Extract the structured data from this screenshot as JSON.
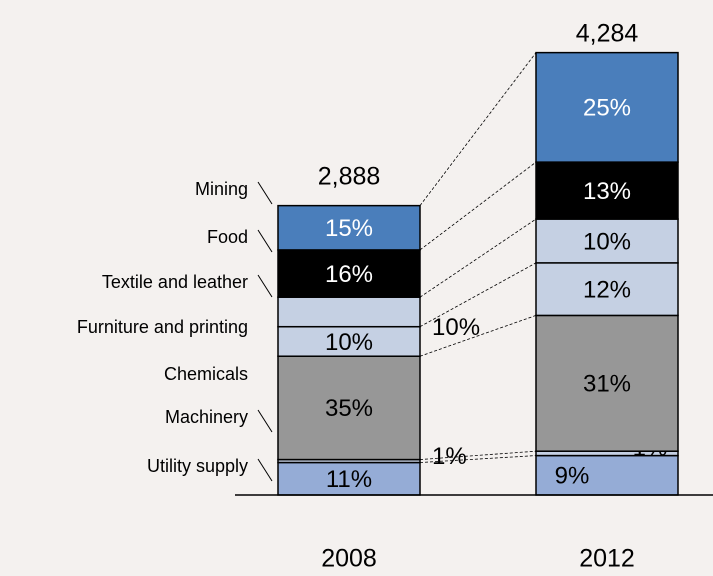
{
  "chart_data": {
    "type": "bar",
    "stacked": true,
    "categories": [
      "2008",
      "2012"
    ],
    "totals": {
      "values": [
        2888,
        4284
      ],
      "value_labels": [
        "2,888",
        "4,284"
      ]
    },
    "series": [
      {
        "name": "Utility supply",
        "color": "#95acd6",
        "values": [
          11,
          9
        ],
        "value_labels": [
          "11%",
          "9%"
        ]
      },
      {
        "name": "Machinery",
        "color": "#c5d0e3",
        "values": [
          1,
          1
        ],
        "value_labels": [
          "1%",
          "1%"
        ]
      },
      {
        "name": "Chemicals",
        "color": "#979797",
        "values": [
          35,
          31
        ],
        "value_labels": [
          "35%",
          "31%"
        ]
      },
      {
        "name": "Furniture and printing",
        "color": "#c5d0e3",
        "values": [
          10,
          12
        ],
        "value_labels": [
          "10%",
          "12%"
        ]
      },
      {
        "name": "Textile and leather",
        "color": "#c5d0e3",
        "values": [
          10,
          10
        ],
        "value_labels": [
          "10%",
          "10%"
        ]
      },
      {
        "name": "Food",
        "color": "#000000",
        "values": [
          16,
          13
        ],
        "value_labels": [
          "16%",
          "13%"
        ]
      },
      {
        "name": "Mining",
        "color": "#4a7ebb",
        "values": [
          15,
          25
        ],
        "value_labels": [
          "15%",
          "25%"
        ]
      }
    ]
  }
}
